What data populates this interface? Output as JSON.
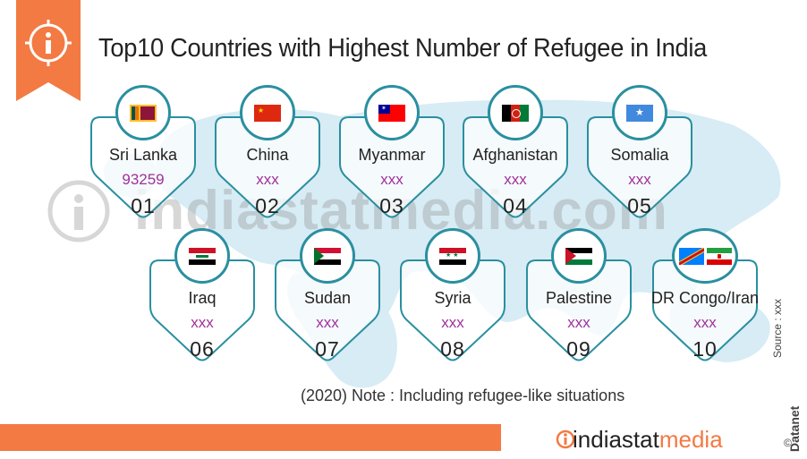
{
  "title": "Top10 Countries with Highest Number of Refugee in India",
  "watermark": "indiastatmedia.com",
  "note": "(2020)  Note : Including refugee-like situations",
  "source": "Source : xxx",
  "datanet": "Datanet",
  "copyright": "©",
  "brand": {
    "part1": "indiastat",
    "part2": "media"
  },
  "colors": {
    "accent": "#f37a43",
    "teal": "#2a8fa0",
    "value": "#a0319a",
    "map": "#d7ecf4"
  },
  "countries": [
    {
      "name": "Sri Lanka",
      "value": "93259",
      "rank": "01",
      "flag": "sri-lanka-flag-icon"
    },
    {
      "name": "China",
      "value": "xxx",
      "rank": "02",
      "flag": "china-flag-icon"
    },
    {
      "name": "Myanmar",
      "value": "xxx",
      "rank": "03",
      "flag": "myanmar-flag-icon"
    },
    {
      "name": "Afghanistan",
      "value": "xxx",
      "rank": "04",
      "flag": "afghanistan-flag-icon"
    },
    {
      "name": "Somalia",
      "value": "xxx",
      "rank": "05",
      "flag": "somalia-flag-icon"
    },
    {
      "name": "Iraq",
      "value": "xxx",
      "rank": "06",
      "flag": "iraq-flag-icon"
    },
    {
      "name": "Sudan",
      "value": "xxx",
      "rank": "07",
      "flag": "sudan-flag-icon"
    },
    {
      "name": "Syria",
      "value": "xxx",
      "rank": "08",
      "flag": "syria-flag-icon"
    },
    {
      "name": "Palestine",
      "value": "xxx",
      "rank": "09",
      "flag": "palestine-flag-icon"
    },
    {
      "name": "DR Congo/Iran",
      "value": "xxx",
      "rank": "10",
      "flag": "drcongo-iran-flag-icon"
    }
  ]
}
